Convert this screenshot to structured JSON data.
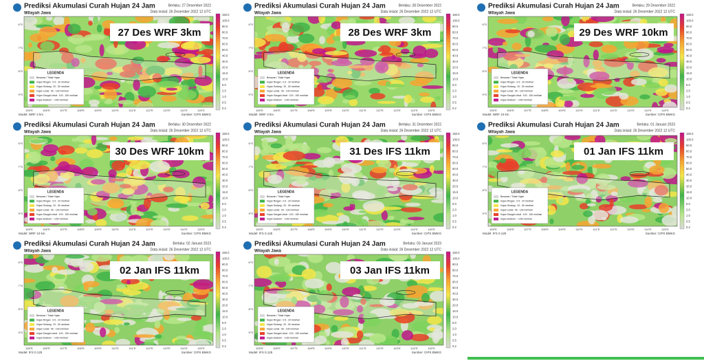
{
  "title": "Prediksi Akumulasi Curah Hujan 24 Jam",
  "region": "Wilayah Jawa",
  "init": "Data inisial:  26 Desember 2022 12 UTC",
  "source": "Sumber: CIPS BMKG",
  "legend": {
    "title": "LEGENDA",
    "items": [
      "Berawan / Tidak Hujan",
      "Hujan Ringan : 0.5 - 20 mm/hari",
      "Hujan Sedang : 20 - 50 mm/hari",
      "Hujan Lebat : 50 - 100 mm/hari",
      "Hujan Sangat Lebat : 100 - 150 mm/hari",
      "Hujan Ekstrem : >150 mm/hari"
    ]
  },
  "colorbar_ticks": [
    "150.0",
    "100.0",
    "90.0",
    "80.0",
    "70.0",
    "60.0",
    "50.0",
    "40.0",
    "30.0",
    "20.0",
    "15.0",
    "10.0",
    "5.0",
    "2.0",
    "1.0",
    "0.5",
    "0.2"
  ],
  "lon_ticks": [
    "105°E",
    "106°E",
    "107°E",
    "108°E",
    "109°E",
    "110°E",
    "111°E",
    "112°E",
    "113°E",
    "114°E",
    "115°E"
  ],
  "lat_ticks": [
    "6°S",
    "7°S",
    "8°S",
    "9°S"
  ],
  "panels": [
    {
      "label": "27 Des WRF 3km",
      "valid": "Berlaku:  27 Desember 2022",
      "model": "Model: WRF 3 km"
    },
    {
      "label": "28 Des WRF 3km",
      "valid": "Berlaku:  28 Desember 2022",
      "model": "Model: WRF 3 km"
    },
    {
      "label": "29 Des WRF 10km",
      "valid": "Berlaku:  29 Desember 2022",
      "model": "Model: WRF 10 km"
    },
    {
      "label": "30 Des WRF 10km",
      "valid": "Berlaku:  30 Desember 2022",
      "model": "Model: WRF 10 km"
    },
    {
      "label": "31 Des IFS 11km",
      "valid": "Berlaku:  31 Desember 2022",
      "model": "Model: IFS 0.125"
    },
    {
      "label": "01 Jan IFS 11km",
      "valid": "Berlaku:  01 Januari 2023",
      "model": "Model: IFS 0.125"
    },
    {
      "label": "02 Jan IFS 11km",
      "valid": "Berlaku:  02 Januari 2023",
      "model": "Model: IFS 0.125"
    },
    {
      "label": "03 Jan IFS 11km",
      "valid": "Berlaku:  03 Januari 2023",
      "model": "Model: IFS 0.125"
    }
  ]
}
